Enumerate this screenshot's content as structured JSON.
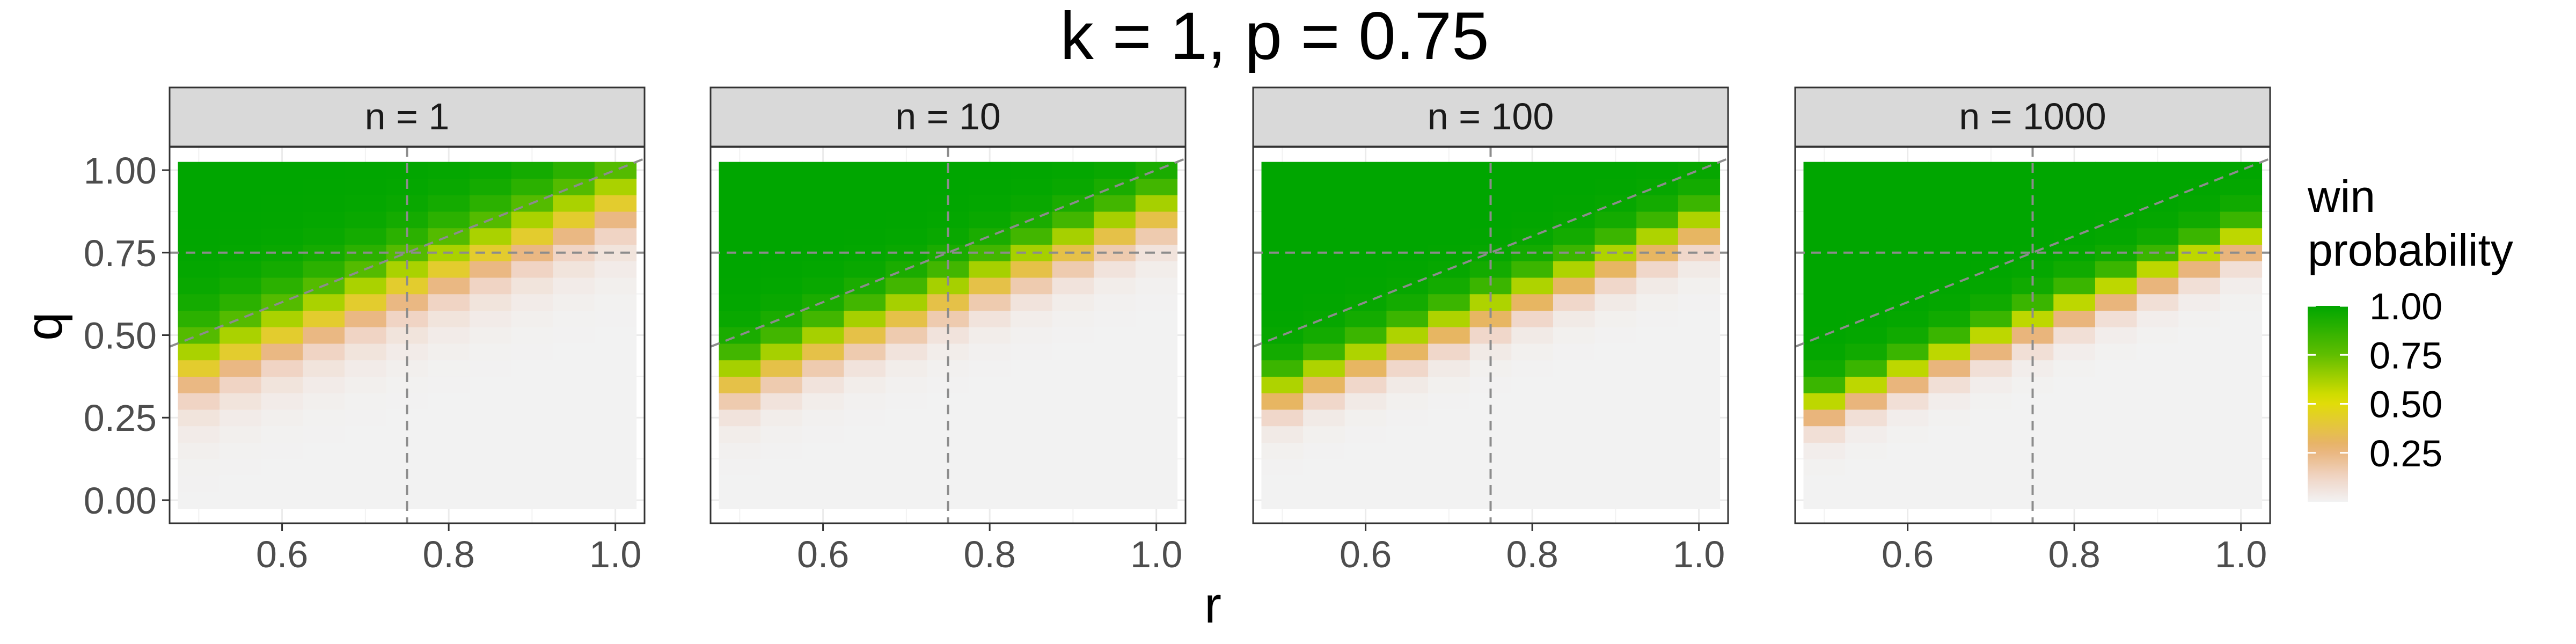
{
  "chart_data": {
    "type": "heatmap",
    "title": "k = 1, p = 0.75",
    "xlabel": "r",
    "ylabel": "q",
    "x_ticks": [
      "0.6",
      "0.8",
      "1.0"
    ],
    "y_ticks": [
      "0.00",
      "0.25",
      "0.50",
      "0.75",
      "1.00"
    ],
    "xlim": [
      0.465,
      1.035
    ],
    "ylim": [
      -0.07,
      1.07
    ],
    "r_values": [
      0.5,
      0.55,
      0.6,
      0.65,
      0.7,
      0.75,
      0.8,
      0.85,
      0.9,
      0.95,
      1.0
    ],
    "q_step": 0.05,
    "reference_lines": {
      "vertical_r": 0.75,
      "horizontal_q": 0.75,
      "diagonal": "q = r"
    },
    "panels": [
      {
        "strip": "n = 1",
        "n": 1
      },
      {
        "strip": "n = 10",
        "n": 10
      },
      {
        "strip": "n = 100",
        "n": 100
      },
      {
        "strip": "n = 1000",
        "n": 1000
      }
    ],
    "legend": {
      "title": "win\nprobability",
      "breaks": [
        "1.00",
        "0.75",
        "0.50",
        "0.25"
      ],
      "position": "right"
    },
    "colors": {
      "low": "#f2f2f2",
      "mid_low": "#e8b070",
      "mid": "#e0e000",
      "high": "#00a600"
    },
    "values_note": "win probability by (r, q) cell: ~0 for q well below r, ~1 for q well above r; transition band narrows/shifts below diagonal as n grows"
  }
}
